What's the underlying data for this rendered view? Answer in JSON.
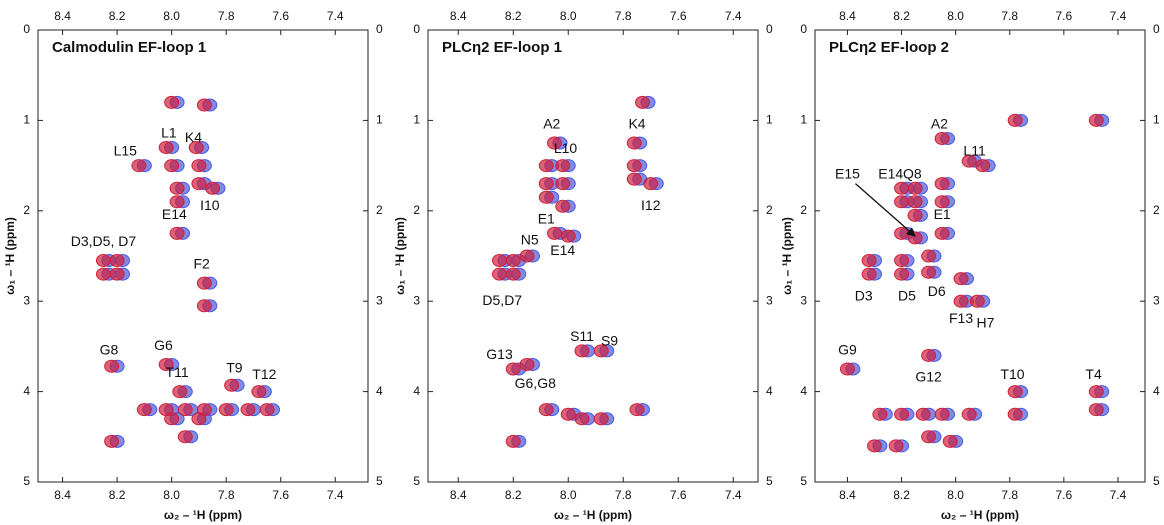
{
  "chart_data": [
    {
      "type": "scatter",
      "title": "Calmodulin EF-loop 1",
      "xlabel": "ω₂ – ¹H (ppm)",
      "ylabel": "ω₁ – ¹H (ppm)",
      "xlim": [
        8.49,
        7.28
      ],
      "ylim": [
        0,
        5
      ],
      "xticks": [
        8.4,
        8.2,
        {
          "value": 8,
          "label": "8.0"
        },
        7.8,
        7.6,
        7.4
      ],
      "yticks": [
        0,
        1,
        2,
        3,
        4,
        5
      ],
      "series": [
        {
          "color": "#4a5ae0",
          "x": [
            7.98,
            7.86,
            8.0,
            7.89,
            8.1,
            7.98,
            7.88,
            7.96,
            7.88,
            7.83,
            7.96,
            7.96,
            8.23,
            8.18,
            8.23,
            8.18,
            7.86,
            7.86,
            8.2,
            8.0,
            7.76,
            7.95,
            7.66,
            8.08,
            8.0,
            7.93,
            7.86,
            7.78,
            7.7,
            7.63,
            7.98,
            7.88,
            8.2,
            7.93
          ],
          "y": [
            0.8,
            0.83,
            1.3,
            1.3,
            1.5,
            1.5,
            1.5,
            1.75,
            1.7,
            1.75,
            1.9,
            2.25,
            2.55,
            2.55,
            2.7,
            2.7,
            2.8,
            3.05,
            3.72,
            3.7,
            3.93,
            4.0,
            4.0,
            4.2,
            4.2,
            4.2,
            4.2,
            4.2,
            4.2,
            4.2,
            4.3,
            4.3,
            4.55,
            4.5
          ]
        },
        {
          "color": "#d0203a",
          "x": [
            8.0,
            7.88,
            8.02,
            7.91,
            8.12,
            8.0,
            7.9,
            7.98,
            7.9,
            7.85,
            7.98,
            7.98,
            8.25,
            8.2,
            8.25,
            8.2,
            7.88,
            7.88,
            8.22,
            8.02,
            7.78,
            7.97,
            7.68,
            8.1,
            8.02,
            7.95,
            7.88,
            7.8,
            7.72,
            7.65,
            8.0,
            7.9,
            8.22,
            7.95
          ],
          "y": [
            0.8,
            0.83,
            1.3,
            1.3,
            1.5,
            1.5,
            1.5,
            1.75,
            1.7,
            1.75,
            1.9,
            2.25,
            2.55,
            2.55,
            2.7,
            2.7,
            2.8,
            3.05,
            3.72,
            3.7,
            3.93,
            4.0,
            4.0,
            4.2,
            4.2,
            4.2,
            4.2,
            4.2,
            4.2,
            4.2,
            4.3,
            4.3,
            4.55,
            4.5
          ]
        }
      ],
      "annotations": [
        {
          "text": "L1",
          "x": 8.01,
          "y": 1.15
        },
        {
          "text": "K4",
          "x": 7.92,
          "y": 1.2
        },
        {
          "text": "L15",
          "x": 8.17,
          "y": 1.35
        },
        {
          "text": "I10",
          "x": 7.86,
          "y": 1.95
        },
        {
          "text": "E14",
          "x": 7.99,
          "y": 2.05
        },
        {
          "text": "D3,D5, D7",
          "x": 8.25,
          "y": 2.35
        },
        {
          "text": "F2",
          "x": 7.89,
          "y": 2.6
        },
        {
          "text": "G8",
          "x": 8.23,
          "y": 3.55
        },
        {
          "text": "G6",
          "x": 8.03,
          "y": 3.5
        },
        {
          "text": "T9",
          "x": 7.77,
          "y": 3.75
        },
        {
          "text": "T11",
          "x": 7.98,
          "y": 3.8
        },
        {
          "text": "T12",
          "x": 7.66,
          "y": 3.82
        }
      ]
    },
    {
      "type": "scatter",
      "title": "PLCη2 EF-loop 1",
      "xlabel": "ω₂ – ¹H (ppm)",
      "ylabel": "ω₁ – ¹H (ppm)",
      "xlim": [
        8.51,
        7.31
      ],
      "ylim": [
        0,
        5
      ],
      "xticks": [
        8.4,
        8.2,
        {
          "value": 8,
          "label": "8.0"
        },
        7.8,
        7.6,
        7.4
      ],
      "yticks": [
        0,
        1,
        2,
        3,
        4,
        5
      ],
      "series": [
        {
          "color": "#4a5ae0",
          "x": [
            8.03,
            7.71,
            7.74,
            7.74,
            7.74,
            7.68,
            8.0,
            8.06,
            8.06,
            8.0,
            8.06,
            8.0,
            8.03,
            7.98,
            8.13,
            8.23,
            8.18,
            8.23,
            8.18,
            7.93,
            7.86,
            8.13,
            8.18,
            8.06,
            7.98,
            7.93,
            7.86,
            7.73,
            8.18
          ],
          "y": [
            1.25,
            0.8,
            1.25,
            1.5,
            1.65,
            1.7,
            1.5,
            1.5,
            1.7,
            1.7,
            1.85,
            1.95,
            2.25,
            2.28,
            2.5,
            2.55,
            2.55,
            2.7,
            2.7,
            3.55,
            3.55,
            3.7,
            3.75,
            4.2,
            4.25,
            4.3,
            4.3,
            4.2,
            4.55
          ]
        },
        {
          "color": "#d0203a",
          "x": [
            8.05,
            7.73,
            7.76,
            7.76,
            7.76,
            7.7,
            8.02,
            8.08,
            8.08,
            8.02,
            8.08,
            8.02,
            8.05,
            8.0,
            8.15,
            8.25,
            8.2,
            8.25,
            8.2,
            7.95,
            7.88,
            8.15,
            8.2,
            8.08,
            8.0,
            7.95,
            7.88,
            7.75,
            8.2
          ],
          "y": [
            1.25,
            0.8,
            1.25,
            1.5,
            1.65,
            1.7,
            1.5,
            1.5,
            1.7,
            1.7,
            1.85,
            1.95,
            2.25,
            2.28,
            2.5,
            2.55,
            2.55,
            2.7,
            2.7,
            3.55,
            3.55,
            3.7,
            3.75,
            4.2,
            4.25,
            4.3,
            4.3,
            4.2,
            4.55
          ]
        }
      ],
      "annotations": [
        {
          "text": "A2",
          "x": 8.06,
          "y": 1.05
        },
        {
          "text": "K4",
          "x": 7.75,
          "y": 1.05
        },
        {
          "text": "L10",
          "x": 8.01,
          "y": 1.32
        },
        {
          "text": "I12",
          "x": 7.7,
          "y": 1.95
        },
        {
          "text": "E1",
          "x": 8.08,
          "y": 2.1
        },
        {
          "text": "N5",
          "x": 8.14,
          "y": 2.33
        },
        {
          "text": "E14",
          "x": 8.02,
          "y": 2.45
        },
        {
          "text": "D5,D7",
          "x": 8.24,
          "y": 3.0
        },
        {
          "text": "S11",
          "x": 7.95,
          "y": 3.4
        },
        {
          "text": "S9",
          "x": 7.85,
          "y": 3.45
        },
        {
          "text": "G13",
          "x": 8.25,
          "y": 3.6
        },
        {
          "text": "G6,G8",
          "x": 8.12,
          "y": 3.92
        }
      ]
    },
    {
      "type": "scatter",
      "title": "PLCη2 EF-loop 2",
      "xlabel": "ω₂ – ¹H (ppm)",
      "ylabel": "ω₁ – ¹H (ppm)",
      "xlim": [
        8.52,
        7.3
      ],
      "ylim": [
        0,
        5
      ],
      "xticks": [
        8.4,
        8.2,
        {
          "value": 8,
          "label": "8.0"
        },
        7.8,
        7.6,
        7.4
      ],
      "yticks": [
        0,
        1,
        2,
        3,
        4,
        5
      ],
      "series": [
        {
          "color": "#4a5ae0",
          "x": [
            8.03,
            7.76,
            7.46,
            7.93,
            7.88,
            8.18,
            8.13,
            8.18,
            8.13,
            8.13,
            8.03,
            8.03,
            8.18,
            8.13,
            8.03,
            8.3,
            8.3,
            8.18,
            8.18,
            8.08,
            8.08,
            7.96,
            7.96,
            7.9,
            8.08,
            8.38,
            7.76,
            7.76,
            7.46,
            7.46,
            8.26,
            8.18,
            8.1,
            8.03,
            7.93,
            8.08,
            8.0,
            8.28,
            8.2
          ],
          "y": [
            1.2,
            1.0,
            1.0,
            1.45,
            1.5,
            1.75,
            1.75,
            1.9,
            1.9,
            2.05,
            1.7,
            1.9,
            2.25,
            2.3,
            2.25,
            2.55,
            2.7,
            2.55,
            2.7,
            2.5,
            2.68,
            2.75,
            3.0,
            3.0,
            3.6,
            3.75,
            4.0,
            4.25,
            4.0,
            4.2,
            4.25,
            4.25,
            4.25,
            4.25,
            4.25,
            4.5,
            4.55,
            4.6,
            4.6
          ]
        },
        {
          "color": "#d0203a",
          "x": [
            8.05,
            7.78,
            7.48,
            7.95,
            7.9,
            8.2,
            8.15,
            8.2,
            8.15,
            8.15,
            8.05,
            8.05,
            8.2,
            8.15,
            8.05,
            8.32,
            8.32,
            8.2,
            8.2,
            8.1,
            8.1,
            7.98,
            7.98,
            7.92,
            8.1,
            8.4,
            7.78,
            7.78,
            7.48,
            7.48,
            8.28,
            8.2,
            8.12,
            8.05,
            7.95,
            8.1,
            8.02,
            8.3,
            8.22
          ],
          "y": [
            1.2,
            1.0,
            1.0,
            1.45,
            1.5,
            1.75,
            1.75,
            1.9,
            1.9,
            2.05,
            1.7,
            1.9,
            2.25,
            2.3,
            2.25,
            2.55,
            2.7,
            2.55,
            2.7,
            2.5,
            2.68,
            2.75,
            3.0,
            3.0,
            3.6,
            3.75,
            4.0,
            4.25,
            4.0,
            4.2,
            4.25,
            4.25,
            4.25,
            4.25,
            4.25,
            4.5,
            4.55,
            4.6,
            4.6
          ]
        }
      ],
      "annotations": [
        {
          "text": "A2",
          "x": 8.06,
          "y": 1.05
        },
        {
          "text": "L11",
          "x": 7.93,
          "y": 1.35
        },
        {
          "text": "E15",
          "x": 8.4,
          "y": 1.6,
          "arrow_to": [
            8.15,
            2.28
          ]
        },
        {
          "text": "E14",
          "x": 8.24,
          "y": 1.6
        },
        {
          "text": "Q8",
          "x": 8.16,
          "y": 1.6
        },
        {
          "text": "E1",
          "x": 8.05,
          "y": 2.05
        },
        {
          "text": "D3",
          "x": 8.34,
          "y": 2.95
        },
        {
          "text": "D5",
          "x": 8.18,
          "y": 2.95
        },
        {
          "text": "D6",
          "x": 8.07,
          "y": 2.9
        },
        {
          "text": "F13",
          "x": 7.98,
          "y": 3.2
        },
        {
          "text": "H7",
          "x": 7.89,
          "y": 3.25
        },
        {
          "text": "G9",
          "x": 8.4,
          "y": 3.55
        },
        {
          "text": "G12",
          "x": 8.1,
          "y": 3.85
        },
        {
          "text": "T10",
          "x": 7.79,
          "y": 3.82
        },
        {
          "text": "T4",
          "x": 7.49,
          "y": 3.82
        }
      ]
    }
  ]
}
